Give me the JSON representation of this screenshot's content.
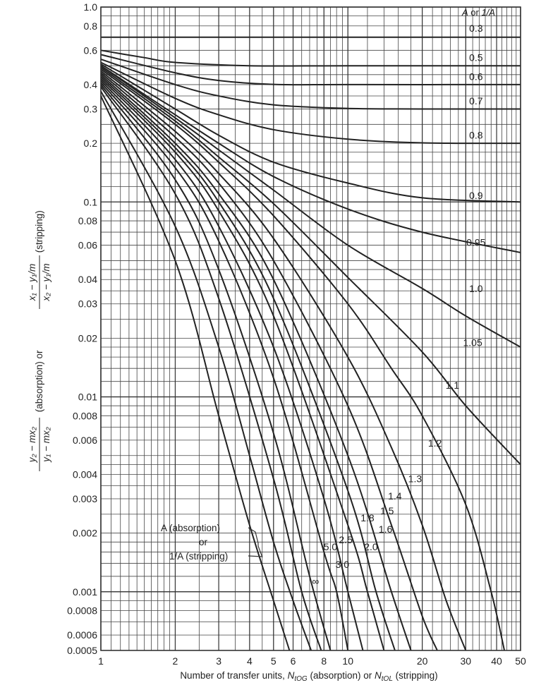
{
  "chart_data": {
    "type": "line",
    "x_scale": "log",
    "y_scale": "log",
    "xlim": [
      1,
      50
    ],
    "ylim": [
      0.0005,
      1.0
    ],
    "grid": true,
    "x_tick_labels": [
      {
        "v": 1,
        "t": "1"
      },
      {
        "v": 2,
        "t": "2"
      },
      {
        "v": 3,
        "t": "3"
      },
      {
        "v": 4,
        "t": "4"
      },
      {
        "v": 5,
        "t": "5"
      },
      {
        "v": 6,
        "t": "6"
      },
      {
        "v": 8,
        "t": "8"
      },
      {
        "v": 10,
        "t": "10"
      },
      {
        "v": 20,
        "t": "20"
      },
      {
        "v": 30,
        "t": "30"
      },
      {
        "v": 40,
        "t": "40"
      },
      {
        "v": 50,
        "t": "50"
      }
    ],
    "y_tick_labels": [
      {
        "v": 1.0,
        "t": "1.0"
      },
      {
        "v": 0.8,
        "t": "0.8"
      },
      {
        "v": 0.6,
        "t": "0.6"
      },
      {
        "v": 0.4,
        "t": "0.4"
      },
      {
        "v": 0.3,
        "t": "0.3"
      },
      {
        "v": 0.2,
        "t": "0.2"
      },
      {
        "v": 0.1,
        "t": "0.1"
      },
      {
        "v": 0.08,
        "t": "0.08"
      },
      {
        "v": 0.06,
        "t": "0.06"
      },
      {
        "v": 0.04,
        "t": "0.04"
      },
      {
        "v": 0.03,
        "t": "0.03"
      },
      {
        "v": 0.02,
        "t": "0.02"
      },
      {
        "v": 0.01,
        "t": "0.01"
      },
      {
        "v": 0.008,
        "t": "0.008"
      },
      {
        "v": 0.006,
        "t": "0.006"
      },
      {
        "v": 0.004,
        "t": "0.004"
      },
      {
        "v": 0.003,
        "t": "0.003"
      },
      {
        "v": 0.002,
        "t": "0.002"
      },
      {
        "v": 0.001,
        "t": "0.001"
      },
      {
        "v": 0.0008,
        "t": "0.0008"
      },
      {
        "v": 0.0006,
        "t": "0.0006"
      },
      {
        "v": 0.0005,
        "t": "0.0005"
      }
    ],
    "xlabel_parts": {
      "prefix": "Number of transfer units, ",
      "n1": "N",
      "n1_sub": "tOG",
      "mid": " (absorption) or ",
      "n2": "N",
      "n2_sub": "tOL",
      "suffix": " (stripping)"
    },
    "ylabel_parts": {
      "absorption_num": "y₂ − mx₂",
      "absorption_den": "y₁ − mx₂",
      "absorption_tag": " (absorption) or ",
      "stripping_num": "x₁ − y₁/m",
      "stripping_den": "x₂ − y₁/m",
      "stripping_tag": " (stripping)"
    },
    "legend_title": "A or 1/A",
    "legend_title_parts": {
      "a": "A",
      "or": " or ",
      "inv": "1/A"
    },
    "annotation_lines": [
      "A (absorption)",
      "or",
      "1/A (stripping)"
    ],
    "series": [
      {
        "name": "0.3",
        "points": [
          [
            1,
            0.7
          ],
          [
            2,
            0.7
          ],
          [
            5,
            0.7
          ],
          [
            10,
            0.7
          ],
          [
            50,
            0.7
          ]
        ]
      },
      {
        "name": "0.5",
        "points": [
          [
            1,
            0.6
          ],
          [
            1.5,
            0.55
          ],
          [
            2,
            0.52
          ],
          [
            4,
            0.5
          ],
          [
            10,
            0.5
          ],
          [
            50,
            0.5
          ]
        ]
      },
      {
        "name": "0.6",
        "points": [
          [
            1,
            0.57
          ],
          [
            2,
            0.46
          ],
          [
            3,
            0.42
          ],
          [
            5,
            0.401
          ],
          [
            10,
            0.4
          ],
          [
            50,
            0.4
          ]
        ]
      },
      {
        "name": "0.7",
        "points": [
          [
            1,
            0.54
          ],
          [
            2,
            0.4
          ],
          [
            3,
            0.35
          ],
          [
            5,
            0.315
          ],
          [
            10,
            0.302
          ],
          [
            20,
            0.3
          ],
          [
            50,
            0.3
          ]
        ]
      },
      {
        "name": "0.8",
        "points": [
          [
            1,
            0.52
          ],
          [
            2,
            0.34
          ],
          [
            3,
            0.28
          ],
          [
            5,
            0.235
          ],
          [
            10,
            0.21
          ],
          [
            20,
            0.201
          ],
          [
            50,
            0.2
          ]
        ]
      },
      {
        "name": "0.9",
        "points": [
          [
            1,
            0.51
          ],
          [
            2,
            0.3
          ],
          [
            3,
            0.22
          ],
          [
            5,
            0.16
          ],
          [
            10,
            0.125
          ],
          [
            20,
            0.105
          ],
          [
            50,
            0.1
          ]
        ]
      },
      {
        "name": "0.95",
        "points": [
          [
            1,
            0.5
          ],
          [
            2,
            0.28
          ],
          [
            3,
            0.2
          ],
          [
            5,
            0.135
          ],
          [
            10,
            0.092
          ],
          [
            20,
            0.07
          ],
          [
            50,
            0.055
          ]
        ]
      },
      {
        "name": "1.0",
        "points": [
          [
            1,
            0.5
          ],
          [
            2,
            0.27
          ],
          [
            3,
            0.185
          ],
          [
            5,
            0.115
          ],
          [
            10,
            0.06
          ],
          [
            20,
            0.036
          ],
          [
            30,
            0.026
          ],
          [
            50,
            0.018
          ]
        ]
      },
      {
        "name": "1.05",
        "points": [
          [
            1,
            0.49
          ],
          [
            2,
            0.26
          ],
          [
            3,
            0.17
          ],
          [
            5,
            0.098
          ],
          [
            10,
            0.041
          ],
          [
            20,
            0.017
          ],
          [
            30,
            0.009
          ],
          [
            50,
            0.0045
          ]
        ]
      },
      {
        "name": "1.1",
        "points": [
          [
            1,
            0.48
          ],
          [
            2,
            0.25
          ],
          [
            3,
            0.16
          ],
          [
            5,
            0.085
          ],
          [
            10,
            0.03
          ],
          [
            15,
            0.014
          ],
          [
            20,
            0.008
          ],
          [
            30,
            0.0028
          ],
          [
            38,
            0.001
          ],
          [
            43,
            0.0005
          ]
        ]
      },
      {
        "name": "1.2",
        "points": [
          [
            1,
            0.47
          ],
          [
            2,
            0.23
          ],
          [
            3,
            0.14
          ],
          [
            5,
            0.065
          ],
          [
            10,
            0.016
          ],
          [
            15,
            0.0055
          ],
          [
            20,
            0.0022
          ],
          [
            25,
            0.0009
          ],
          [
            30,
            0.0005
          ]
        ]
      },
      {
        "name": "1.3",
        "points": [
          [
            1,
            0.46
          ],
          [
            2,
            0.215
          ],
          [
            3,
            0.125
          ],
          [
            5,
            0.05
          ],
          [
            10,
            0.009
          ],
          [
            15,
            0.0022
          ],
          [
            20,
            0.00075
          ],
          [
            23,
            0.0005
          ]
        ]
      },
      {
        "name": "1.4",
        "points": [
          [
            1,
            0.45
          ],
          [
            2,
            0.2
          ],
          [
            3,
            0.11
          ],
          [
            5,
            0.04
          ],
          [
            10,
            0.005
          ],
          [
            15,
            0.001
          ],
          [
            18,
            0.0005
          ]
        ]
      },
      {
        "name": "1.5",
        "points": [
          [
            1,
            0.44
          ],
          [
            2,
            0.19
          ],
          [
            3,
            0.1
          ],
          [
            5,
            0.032
          ],
          [
            10,
            0.0033
          ],
          [
            13,
            0.001
          ],
          [
            15.5,
            0.0005
          ]
        ]
      },
      {
        "name": "1.6",
        "points": [
          [
            1,
            0.43
          ],
          [
            2,
            0.18
          ],
          [
            3,
            0.09
          ],
          [
            5,
            0.026
          ],
          [
            10,
            0.0022
          ],
          [
            12,
            0.001
          ],
          [
            14,
            0.0005
          ]
        ]
      },
      {
        "name": "1.8",
        "points": [
          [
            1,
            0.42
          ],
          [
            2,
            0.165
          ],
          [
            3,
            0.075
          ],
          [
            5,
            0.018
          ],
          [
            8,
            0.003
          ],
          [
            10,
            0.001
          ],
          [
            11.5,
            0.0005
          ]
        ]
      },
      {
        "name": "2.0",
        "points": [
          [
            1,
            0.41
          ],
          [
            2,
            0.15
          ],
          [
            3,
            0.063
          ],
          [
            5,
            0.0125
          ],
          [
            8,
            0.0016
          ],
          [
            9,
            0.001
          ],
          [
            10,
            0.0005
          ]
        ]
      },
      {
        "name": "2.5",
        "points": [
          [
            1,
            0.4
          ],
          [
            2,
            0.13
          ],
          [
            3,
            0.045
          ],
          [
            5,
            0.0065
          ],
          [
            7,
            0.0012
          ],
          [
            8.5,
            0.0005
          ]
        ]
      },
      {
        "name": "3.0",
        "points": [
          [
            1,
            0.39
          ],
          [
            2,
            0.11
          ],
          [
            3,
            0.032
          ],
          [
            5,
            0.0038
          ],
          [
            6.5,
            0.001
          ],
          [
            7.8,
            0.0005
          ]
        ]
      },
      {
        "name": "5.0",
        "points": [
          [
            1,
            0.37
          ],
          [
            2,
            0.075
          ],
          [
            3,
            0.018
          ],
          [
            4,
            0.005
          ],
          [
            5,
            0.0018
          ],
          [
            6,
            0.0009
          ],
          [
            7.1,
            0.0005
          ]
        ]
      },
      {
        "name": "∞",
        "points": [
          [
            1,
            0.35
          ],
          [
            2,
            0.05
          ],
          [
            3,
            0.008
          ],
          [
            4,
            0.0022
          ],
          [
            5,
            0.0009
          ],
          [
            5.8,
            0.0005
          ]
        ]
      }
    ],
    "curve_labels": [
      {
        "text": "0.3",
        "x": 33,
        "y": 0.78
      },
      {
        "text": "0.5",
        "x": 33,
        "y": 0.55
      },
      {
        "text": "0.6",
        "x": 33,
        "y": 0.44
      },
      {
        "text": "0.7",
        "x": 33,
        "y": 0.33
      },
      {
        "text": "0.8",
        "x": 33,
        "y": 0.22
      },
      {
        "text": "0.9",
        "x": 33,
        "y": 0.108
      },
      {
        "text": "0.95",
        "x": 33,
        "y": 0.062
      },
      {
        "text": "1.0",
        "x": 33,
        "y": 0.036
      },
      {
        "text": "1.05",
        "x": 32,
        "y": 0.019
      },
      {
        "text": "1.1",
        "x": 26.5,
        "y": 0.0115
      },
      {
        "text": "1.2",
        "x": 22.5,
        "y": 0.0058
      },
      {
        "text": "1.3",
        "x": 18.7,
        "y": 0.0038
      },
      {
        "text": "1.4",
        "x": 15.5,
        "y": 0.0031
      },
      {
        "text": "1.5",
        "x": 14.4,
        "y": 0.0026
      },
      {
        "text": "1.6",
        "x": 14.2,
        "y": 0.0021
      },
      {
        "text": "1.8",
        "x": 12.0,
        "y": 0.0024
      },
      {
        "text": "2.0",
        "x": 12.4,
        "y": 0.0017
      },
      {
        "text": "2.5",
        "x": 9.8,
        "y": 0.00185
      },
      {
        "text": "3.0",
        "x": 9.5,
        "y": 0.00138
      },
      {
        "text": "5.0",
        "x": 8.5,
        "y": 0.0017
      },
      {
        "text": "∞",
        "x": 7.4,
        "y": 0.00113
      }
    ]
  }
}
